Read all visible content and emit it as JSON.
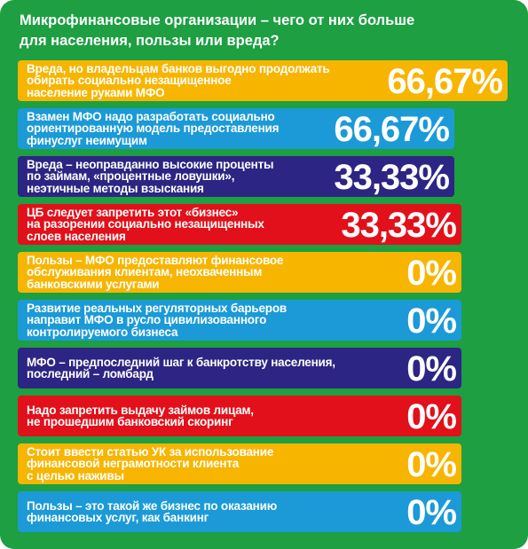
{
  "title": [
    "Микрофинансовые организации – чего от них больше",
    "для населения, пользы или вреда?"
  ],
  "items": [
    {
      "lines": [
        "Вреда, но владельцам банков выгодно продолжать",
        "обирать социально незащищенное",
        "население руками МФО"
      ],
      "value_label": "66,67%",
      "color": "#f7b500"
    },
    {
      "lines": [
        "Взамен МФО надо разработать социально",
        "ориентированную модель предоставления",
        "финуслуг неимущим"
      ],
      "value_label": "66,67%",
      "color": "#1b9ad7"
    },
    {
      "lines": [
        "Вреда – неоправданно высокие проценты",
        "по займам, «процентные ловушки»,",
        "неэтичные методы взыскания"
      ],
      "value_label": "33,33%",
      "color": "#2d2583"
    },
    {
      "lines": [
        "ЦБ следует запретить этот «бизнес»",
        "на разорении социально незащищенных",
        "слоев населения"
      ],
      "value_label": "33,33%",
      "color": "#e2101a"
    },
    {
      "lines": [
        "Пользы – МФО предоставляют финансовое",
        "обслуживания клиентам, неохваченным",
        "банковскими услугами"
      ],
      "value_label": "0%",
      "color": "#f7b500"
    },
    {
      "lines": [
        "Развитие реальных регуляторных барьеров",
        "направит МФО в русло цивилизованного",
        "контролируемого бизнеса"
      ],
      "value_label": "0%",
      "color": "#1b9ad7"
    },
    {
      "lines": [
        "МФО – предпоследний шаг к банкротству населения,",
        "последний – ломбард"
      ],
      "value_label": "0%",
      "color": "#2d2583"
    },
    {
      "lines": [
        "Надо запретить выдачу займов лицам,",
        "не прошедшим банковский скоринг"
      ],
      "value_label": "0%",
      "color": "#e2101a"
    },
    {
      "lines": [
        "Стоит ввести статью УК за использование",
        "финансовой неграмотности клиента",
        "с целью наживы"
      ],
      "value_label": "0%",
      "color": "#f7b500"
    },
    {
      "lines": [
        "Пользы – это такой же бизнес по оказанию",
        "финансовых услуг, как банкинг"
      ],
      "value_label": "0%",
      "color": "#1b9ad7"
    }
  ]
}
